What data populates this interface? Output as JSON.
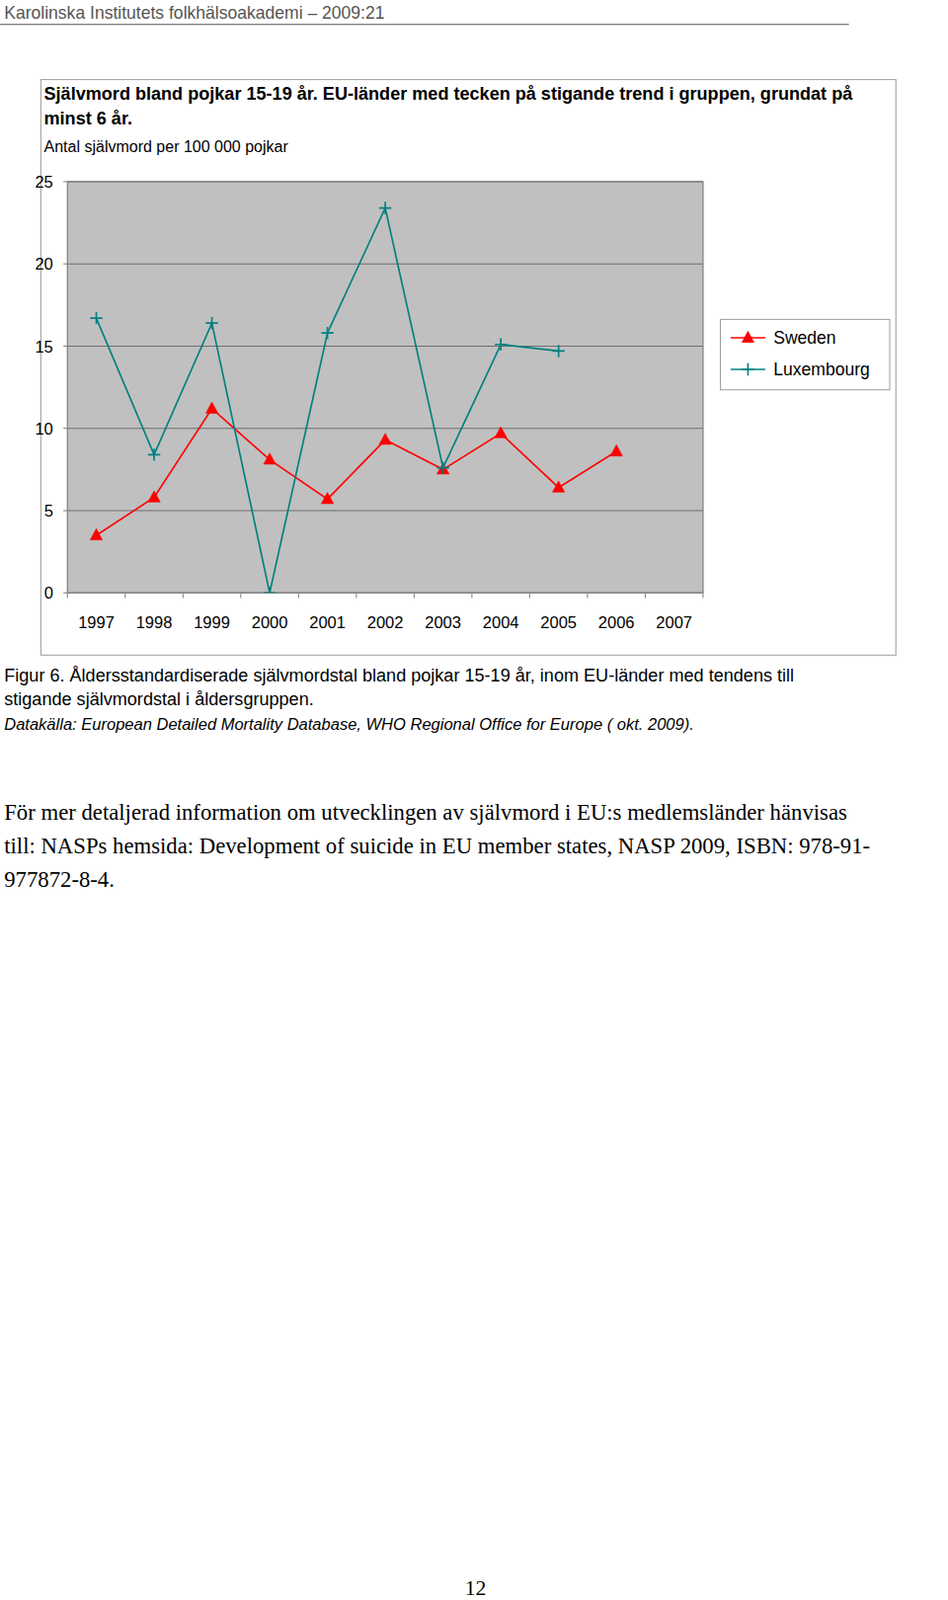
{
  "header": {
    "text": "Karolinska Institutets folkhälsoakademi – 2009:21"
  },
  "chart_data": {
    "type": "line",
    "title": "Självmord bland pojkar 15-19 år. EU-länder med tecken på stigande trend i gruppen, grundat på minst 6 år.",
    "y_label": "Antal självmord per 100 000 pojkar",
    "categories": [
      "1997",
      "1998",
      "1999",
      "2000",
      "2001",
      "2002",
      "2003",
      "2004",
      "2005",
      "2006",
      "2007"
    ],
    "series": [
      {
        "name": "Sweden",
        "color": "#ff0000",
        "marker": "triangle",
        "line_style": "solid",
        "values": [
          3.5,
          5.8,
          11.2,
          8.1,
          5.7,
          9.3,
          7.5,
          9.7,
          6.4,
          8.6,
          null
        ]
      },
      {
        "name": "Luxembourg",
        "color": "#008080",
        "marker": "plus",
        "line_style": "solid",
        "values": [
          16.7,
          8.4,
          16.4,
          0,
          15.8,
          23.4,
          7.6,
          15.1,
          14.7,
          null,
          null
        ]
      }
    ],
    "ylim": [
      0,
      25
    ],
    "yticks": [
      0,
      5,
      10,
      15,
      20,
      25
    ],
    "grid": true,
    "legend": "right"
  },
  "caption": {
    "lines": [
      "Figur 6. Åldersstandardiserade självmordstal bland pojkar 15-19 år, inom EU-länder med tendens till",
      "stigande självmordstal i åldersgruppen."
    ],
    "source": "Datakälla: European Detailed Mortality Database, WHO Regional Office for Europe ( okt. 2009)."
  },
  "paragraph": {
    "lines": [
      "För mer detaljerad information om utvecklingen av självmord i EU:s medlemsländer hänvisas",
      "till: NASPs hemsida: Development of suicide in EU member states, NASP 2009, ISBN: 978-91-",
      "977872-8-4."
    ]
  },
  "page_number": "12"
}
